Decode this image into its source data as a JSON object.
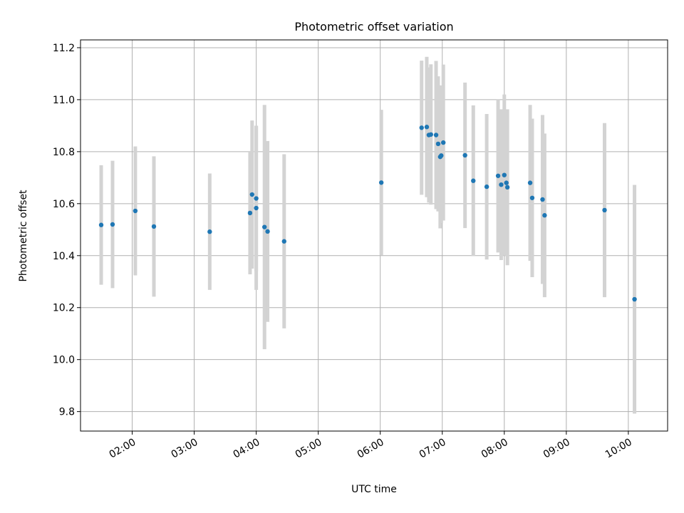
{
  "chart_data": {
    "type": "scatter",
    "title": "Photometric offset variation",
    "xlabel": "UTC time",
    "ylabel": "Photometric offset",
    "x_type": "time",
    "xlim": [
      "01:10",
      "10:38"
    ],
    "ylim": [
      9.725,
      11.23
    ],
    "grid": true,
    "x_ticks": [
      "02:00",
      "03:00",
      "04:00",
      "05:00",
      "06:00",
      "07:00",
      "08:00",
      "09:00",
      "10:00"
    ],
    "y_ticks": [
      9.8,
      10.0,
      10.2,
      10.4,
      10.6,
      10.8,
      11.0,
      11.2
    ],
    "y_tick_labels": [
      "9.8",
      "10.0",
      "10.2",
      "10.4",
      "10.6",
      "10.8",
      "11.0",
      "11.2"
    ],
    "point_color": "#1f77b4",
    "errorbar_color": "#d3d3d3",
    "series": [
      {
        "points": [
          {
            "x": "01:30",
            "y": 10.518,
            "err": 0.23
          },
          {
            "x": "01:41",
            "y": 10.52,
            "err": 0.245
          },
          {
            "x": "02:03",
            "y": 10.572,
            "err": 0.248
          },
          {
            "x": "02:21",
            "y": 10.512,
            "err": 0.27
          },
          {
            "x": "03:15",
            "y": 10.492,
            "err": 0.224
          },
          {
            "x": "03:54",
            "y": 10.564,
            "err": 0.236
          },
          {
            "x": "03:56",
            "y": 10.635,
            "err": 0.285
          },
          {
            "x": "04:00",
            "y": 10.62,
            "err": 0.28
          },
          {
            "x": "04:00",
            "y": 10.583,
            "err": 0.315
          },
          {
            "x": "04:08",
            "y": 10.51,
            "err": 0.47
          },
          {
            "x": "04:11",
            "y": 10.493,
            "err": 0.348
          },
          {
            "x": "04:27",
            "y": 10.455,
            "err": 0.335
          },
          {
            "x": "06:01",
            "y": 10.681,
            "err": 0.28
          },
          {
            "x": "06:40",
            "y": 10.892,
            "err": 0.258
          },
          {
            "x": "06:45",
            "y": 10.895,
            "err": 0.27
          },
          {
            "x": "06:47",
            "y": 10.864,
            "err": 0.26
          },
          {
            "x": "06:49",
            "y": 10.866,
            "err": 0.27
          },
          {
            "x": "06:54",
            "y": 10.864,
            "err": 0.285
          },
          {
            "x": "06:56",
            "y": 10.83,
            "err": 0.26
          },
          {
            "x": "06:58",
            "y": 10.78,
            "err": 0.275
          },
          {
            "x": "06:59",
            "y": 10.785,
            "err": 0.26
          },
          {
            "x": "07:01",
            "y": 10.835,
            "err": 0.3
          },
          {
            "x": "07:22",
            "y": 10.786,
            "err": 0.28
          },
          {
            "x": "07:30",
            "y": 10.688,
            "err": 0.29
          },
          {
            "x": "07:43",
            "y": 10.665,
            "err": 0.28
          },
          {
            "x": "07:54",
            "y": 10.707,
            "err": 0.295
          },
          {
            "x": "07:57",
            "y": 10.673,
            "err": 0.29
          },
          {
            "x": "08:00",
            "y": 10.71,
            "err": 0.31
          },
          {
            "x": "08:02",
            "y": 10.68,
            "err": 0.28
          },
          {
            "x": "08:03",
            "y": 10.663,
            "err": 0.3
          },
          {
            "x": "08:25",
            "y": 10.68,
            "err": 0.3
          },
          {
            "x": "08:27",
            "y": 10.622,
            "err": 0.305
          },
          {
            "x": "08:37",
            "y": 10.616,
            "err": 0.325
          },
          {
            "x": "08:39",
            "y": 10.555,
            "err": 0.315
          },
          {
            "x": "09:37",
            "y": 10.575,
            "err": 0.335
          },
          {
            "x": "10:06",
            "y": 10.232,
            "err": 0.44
          }
        ]
      }
    ]
  }
}
